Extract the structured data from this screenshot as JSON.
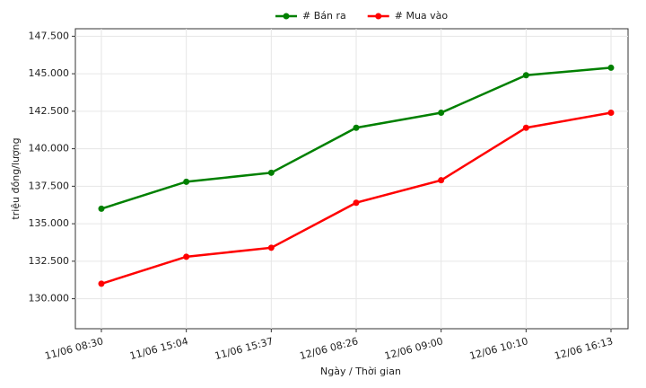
{
  "chart_data": {
    "type": "line",
    "x_label": "Ngày / Thời gian",
    "y_label": "triệu đồng/lượng",
    "categories": [
      "11/06 08:30",
      "11/06 15:04",
      "11/06 15:37",
      "12/06 08:26",
      "12/06 09:00",
      "12/06 10:10",
      "12/06 16:13"
    ],
    "series": [
      {
        "name": "# Bán ra",
        "color": "#008000",
        "values": [
          136000,
          137800,
          138400,
          141400,
          142400,
          144900,
          145400
        ]
      },
      {
        "name": "# Mua vào",
        "color": "#ff0000",
        "values": [
          131000,
          132800,
          133400,
          136400,
          137900,
          141400,
          142400
        ]
      }
    ],
    "ylim": [
      128000,
      148000
    ],
    "yticks": [
      {
        "value": 130000,
        "label": "130.000"
      },
      {
        "value": 132500,
        "label": "132.500"
      },
      {
        "value": 135000,
        "label": "135.000"
      },
      {
        "value": 137500,
        "label": "137.500"
      },
      {
        "value": 140000,
        "label": "140.000"
      },
      {
        "value": 142500,
        "label": "142.500"
      },
      {
        "value": 145000,
        "label": "145.000"
      },
      {
        "value": 147500,
        "label": "147.500"
      }
    ],
    "grid": true,
    "legend": "top"
  }
}
